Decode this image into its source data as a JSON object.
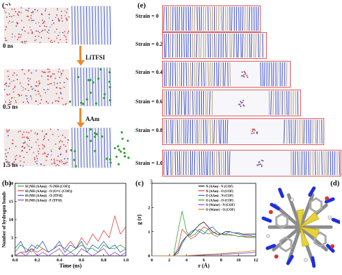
{
  "panels": {
    "a": {
      "label": "(a)",
      "times": [
        "0 ns",
        "0.5 ns",
        "1.5 ns"
      ],
      "steps": [
        "LiTFSI",
        "AAm"
      ]
    },
    "e": {
      "label": "(e)",
      "strains": [
        "Strain = 0",
        "Strain = 0.2",
        "Strain = 0.4",
        "Strain = 0.6",
        "Strain = 0.8",
        "Strain = 1.0"
      ]
    },
    "b": {
      "label": "(b)"
    },
    "c": {
      "label": "(c)",
      "corner_tick": "3"
    },
    "d": {
      "label": "(d)"
    }
  },
  "colors": {
    "arrow": "#f08a28",
    "strain_border": "#e05a5a",
    "cof_blue": "#3b4fc8",
    "water_red": "#d23c3c",
    "li_green": "#2ca02c"
  },
  "chart_data": [
    {
      "type": "line",
      "id": "b",
      "xlabel": "Time (ns)",
      "ylabel": "Number of hydrogen bonds",
      "xlim": [
        0.0,
        1.0
      ],
      "ylim": [
        0,
        20
      ],
      "xticks": [
        "0.0",
        "0.2",
        "0.4",
        "0.6",
        "0.8",
        "1.0"
      ],
      "yticks": [
        "0",
        "5",
        "10",
        "15",
        "20"
      ],
      "legend_position": "top-left",
      "series": [
        {
          "name": "H (NH (AAm)) - N (NH (COF))",
          "color": "#2ca02c",
          "x": [
            0.0,
            0.05,
            0.1,
            0.15,
            0.2,
            0.25,
            0.3,
            0.35,
            0.4,
            0.45,
            0.5,
            0.55,
            0.6,
            0.65,
            0.7,
            0.75,
            0.8,
            0.85,
            0.9,
            0.95,
            1.0
          ],
          "y": [
            1,
            3,
            2,
            1,
            3,
            2,
            1,
            2,
            3,
            2,
            1,
            2,
            3,
            2,
            2,
            1,
            3,
            2,
            2,
            3,
            2
          ]
        },
        {
          "name": "H (NH (AAm)) - O (O=C (COF))",
          "color": "#e03c3c",
          "x": [
            0.0,
            0.05,
            0.1,
            0.15,
            0.2,
            0.25,
            0.3,
            0.35,
            0.4,
            0.45,
            0.5,
            0.55,
            0.6,
            0.65,
            0.7,
            0.75,
            0.8,
            0.85,
            0.9,
            0.95,
            1.0
          ],
          "y": [
            0,
            1,
            1,
            2,
            1,
            2,
            1,
            2,
            3,
            2,
            4,
            2,
            5,
            3,
            6,
            4,
            7,
            5,
            11,
            6,
            8
          ]
        },
        {
          "name": "H (NH (AAm)) - O (TFSI)",
          "color": "#2060c8",
          "x": [
            0.0,
            0.05,
            0.1,
            0.15,
            0.2,
            0.25,
            0.3,
            0.35,
            0.4,
            0.45,
            0.5,
            0.55,
            0.6,
            0.65,
            0.7,
            0.75,
            0.8,
            0.85,
            0.9,
            0.95,
            1.0
          ],
          "y": [
            2,
            4,
            1,
            3,
            2,
            4,
            1,
            2,
            4,
            1,
            3,
            2,
            4,
            1,
            3,
            2,
            4,
            2,
            3,
            1,
            2
          ]
        },
        {
          "name": "H (NH (AAm)) - F (TFSI)",
          "color": "#8a3cc8",
          "x": [
            0.0,
            0.05,
            0.1,
            0.15,
            0.2,
            0.25,
            0.3,
            0.35,
            0.4,
            0.45,
            0.5,
            0.55,
            0.6,
            0.65,
            0.7,
            0.75,
            0.8,
            0.85,
            0.9,
            0.95,
            1.0
          ],
          "y": [
            0,
            1,
            0,
            2,
            0,
            1,
            0,
            1,
            2,
            0,
            1,
            0,
            2,
            1,
            0,
            1,
            2,
            0,
            1,
            0,
            1
          ]
        }
      ]
    },
    {
      "type": "line",
      "id": "c",
      "xlabel": "r (Å)",
      "ylabel": "g (r)",
      "xlim": [
        0,
        12
      ],
      "ylim": [
        0,
        3
      ],
      "xticks": [
        "0",
        "2",
        "4",
        "6",
        "8",
        "10",
        "12"
      ],
      "yticks": [
        "0",
        "1",
        "2"
      ],
      "legend_position": "top-right",
      "series": [
        {
          "name": "N (AAm) - N (COF)",
          "color": "#111111",
          "x": [
            0,
            2.5,
            3.0,
            3.5,
            4.0,
            4.5,
            5.0,
            5.5,
            6.0,
            6.5,
            7.0,
            7.5,
            8.0,
            8.5,
            9.0,
            9.5,
            10.0,
            10.5,
            11.0,
            12.0
          ],
          "y": [
            0,
            0,
            0.2,
            0.6,
            0.8,
            0.9,
            1.1,
            1.3,
            1.4,
            1.2,
            1.0,
            0.9,
            0.9,
            1.0,
            1.0,
            0.95,
            0.95,
            0.9,
            0.9,
            0.9
          ]
        },
        {
          "name": "N (AAm) - O (COF)",
          "color": "#e03c3c",
          "x": [
            0,
            2.5,
            3.0,
            3.5,
            4.0,
            4.5,
            5.0,
            5.5,
            6.0,
            6.5,
            7.0,
            7.5,
            8.0,
            8.5,
            9.0,
            9.5,
            10.0,
            10.5,
            11.0,
            12.0
          ],
          "y": [
            0,
            0,
            0.3,
            1.1,
            0.9,
            0.7,
            0.8,
            1.0,
            1.2,
            1.1,
            0.9,
            0.8,
            0.9,
            0.9,
            0.85,
            0.85,
            0.8,
            0.8,
            0.8,
            0.8
          ]
        },
        {
          "name": "O (AAm) - N (COF)",
          "color": "#2060c8",
          "x": [
            0,
            2.5,
            3.0,
            3.5,
            4.0,
            4.5,
            5.0,
            5.5,
            6.0,
            6.5,
            7.0,
            7.5,
            8.0,
            8.5,
            9.0,
            9.5,
            10.0,
            10.5,
            11.0,
            12.0
          ],
          "y": [
            0,
            0,
            0.1,
            0.5,
            0.8,
            1.0,
            1.1,
            1.0,
            0.9,
            1.1,
            1.2,
            1.0,
            0.9,
            0.9,
            1.0,
            0.95,
            0.9,
            0.85,
            0.85,
            0.8
          ]
        },
        {
          "name": "O (AAm) - O (COF)",
          "color": "#2ca02c",
          "x": [
            0,
            2.5,
            3.0,
            3.5,
            4.0,
            4.5,
            5.0,
            5.5,
            6.0,
            6.5,
            7.0,
            7.5,
            8.0,
            8.5,
            9.0,
            9.5,
            10.0,
            10.5,
            11.0,
            12.0
          ],
          "y": [
            0,
            0,
            1.0,
            1.85,
            1.0,
            0.8,
            0.9,
            1.1,
            1.0,
            0.9,
            0.95,
            1.0,
            0.9,
            0.85,
            0.9,
            0.85,
            0.8,
            0.8,
            0.75,
            0.75
          ]
        },
        {
          "name": "O (Water) - N (COF)",
          "color": "#8a3cc8",
          "x": [
            0,
            3,
            4,
            5,
            6,
            7,
            8,
            9,
            10,
            11,
            12
          ],
          "y": [
            0,
            0,
            0,
            0.02,
            0.03,
            0.05,
            0.06,
            0.08,
            0.1,
            0.12,
            0.15
          ]
        },
        {
          "name": "O (Water) - O (COF)",
          "color": "#c8821e",
          "x": [
            0,
            3,
            4,
            5,
            6,
            7,
            8,
            9,
            10,
            11,
            12
          ],
          "y": [
            0,
            0,
            0.01,
            0.03,
            0.05,
            0.07,
            0.09,
            0.12,
            0.15,
            0.18,
            0.22
          ]
        }
      ]
    }
  ]
}
